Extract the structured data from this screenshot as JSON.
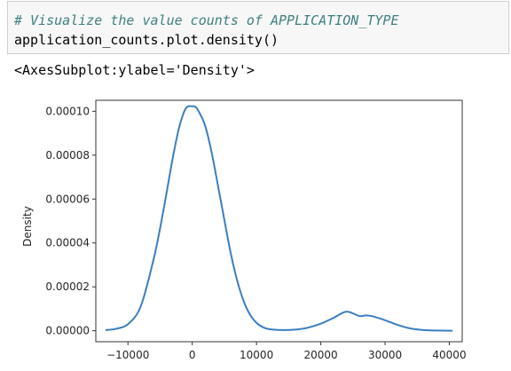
{
  "code_cell": {
    "comment": "# Visualize the value counts of APPLICATION_TYPE",
    "code": "application_counts.plot.density()"
  },
  "output": {
    "repr": "<AxesSubplot:ylabel='Density'>"
  },
  "chart_data": {
    "type": "line",
    "ylabel": "Density",
    "xlim": [
      -15000,
      42000
    ],
    "ylim": [
      -5e-06,
      0.000105
    ],
    "x_ticks": [
      -10000,
      0,
      10000,
      20000,
      30000,
      40000
    ],
    "x_tick_labels": [
      "−10000",
      "0",
      "10000",
      "20000",
      "30000",
      "40000"
    ],
    "y_ticks": [
      0,
      2e-05,
      4e-05,
      6e-05,
      8e-05,
      0.0001
    ],
    "y_tick_labels": [
      "0.00000",
      "0.00002",
      "0.00004",
      "0.00006",
      "0.00008",
      "0.00010"
    ],
    "line_color": "#3b7ebf",
    "series": [
      {
        "x": [
          -13500,
          -12000,
          -10000,
          -8000,
          -6000,
          -5000,
          -4000,
          -3000,
          -2000,
          -1000,
          0,
          500,
          1000,
          2000,
          3000,
          4000,
          5000,
          6000,
          7000,
          8000,
          9000,
          10000,
          11000,
          12000,
          14000,
          16000,
          18000,
          20000,
          22000,
          24000,
          26000,
          27000,
          28000,
          30000,
          32000,
          34000,
          36000,
          38000,
          40500
        ],
        "y": [
          3e-07,
          8e-07,
          3e-06,
          1.12e-05,
          3.27e-05,
          4.67e-05,
          6.27e-05,
          7.92e-05,
          9.3e-05,
          0.0001013,
          0.0001023,
          0.000102,
          0.0001,
          9.35e-05,
          8.15e-05,
          6.62e-05,
          5.05e-05,
          3.52e-05,
          2.28e-05,
          1.35e-05,
          7.3e-06,
          3.6e-06,
          1.6e-06,
          7e-07,
          3e-07,
          5e-07,
          1.4e-06,
          3.2e-06,
          5.9e-06,
          8.7e-06,
          6.7e-06,
          7e-06,
          6.6e-06,
          4.8e-06,
          2.6e-06,
          1e-06,
          3e-07,
          1e-07,
          0.0
        ]
      }
    ]
  }
}
